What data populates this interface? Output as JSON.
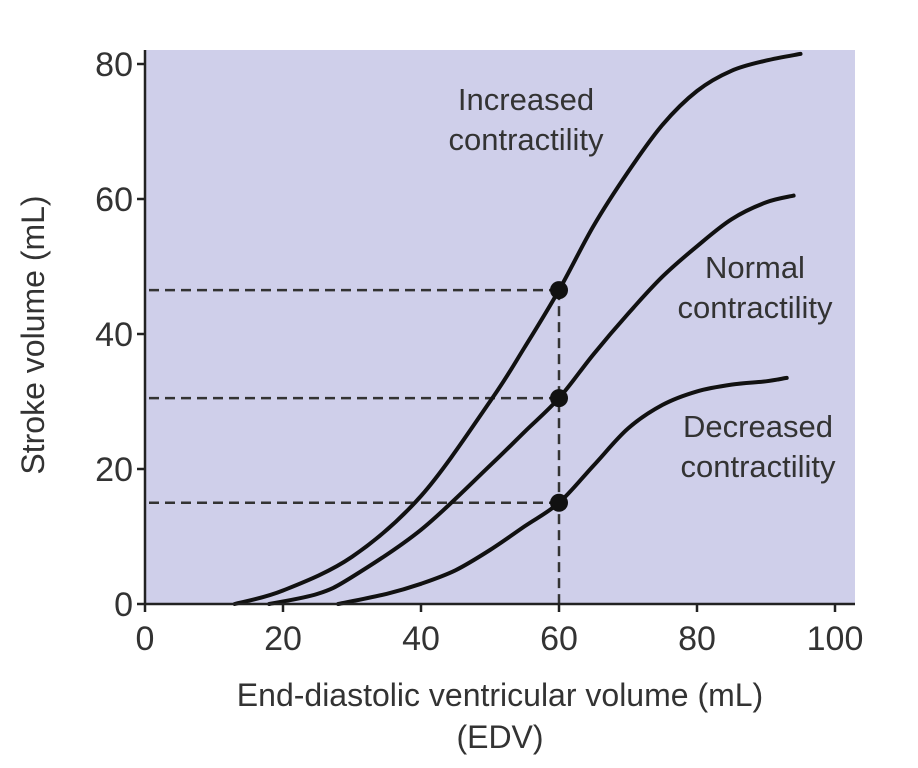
{
  "chart_data": {
    "type": "line",
    "title": "",
    "xlabel": "End-diastolic ventricular volume (mL)",
    "xlabel_sub": "(EDV)",
    "ylabel": "Stroke volume (mL)",
    "xlim": [
      0,
      100
    ],
    "ylim": [
      0,
      80
    ],
    "xticks": [
      0,
      20,
      40,
      60,
      80,
      100
    ],
    "yticks": [
      0,
      20,
      40,
      60,
      80
    ],
    "grid": false,
    "plot_background": "#cfcfea",
    "series": [
      {
        "name": "Increased contractility",
        "label_lines": [
          "Increased",
          "contractility"
        ],
        "x": [
          13,
          20,
          30,
          40,
          50,
          55,
          60,
          65,
          70,
          75,
          80,
          85,
          90,
          95
        ],
        "y": [
          0,
          2,
          7,
          16,
          30,
          38,
          46.5,
          56,
          64,
          71,
          76,
          79,
          80.5,
          81.5
        ]
      },
      {
        "name": "Normal contractility",
        "label_lines": [
          "Normal",
          "contractility"
        ],
        "x": [
          18,
          25,
          30,
          40,
          50,
          55,
          60,
          65,
          70,
          75,
          80,
          85,
          90,
          94
        ],
        "y": [
          0,
          1.5,
          4,
          11,
          20.5,
          25.5,
          30.5,
          37,
          43,
          48.5,
          53,
          57,
          59.5,
          60.5
        ]
      },
      {
        "name": "Decreased contractility",
        "label_lines": [
          "Decreased",
          "contractility"
        ],
        "x": [
          28,
          35,
          40,
          45,
          50,
          55,
          60,
          65,
          70,
          75,
          80,
          85,
          90,
          93
        ],
        "y": [
          0,
          1.5,
          3,
          5,
          8,
          11.5,
          15,
          20.5,
          26,
          29.5,
          31.5,
          32.5,
          33,
          33.5
        ]
      }
    ],
    "reference_points": [
      {
        "x": 60,
        "y": 46.5,
        "series": "Increased contractility"
      },
      {
        "x": 60,
        "y": 30.5,
        "series": "Normal contractility"
      },
      {
        "x": 60,
        "y": 15,
        "series": "Decreased contractility"
      }
    ]
  }
}
